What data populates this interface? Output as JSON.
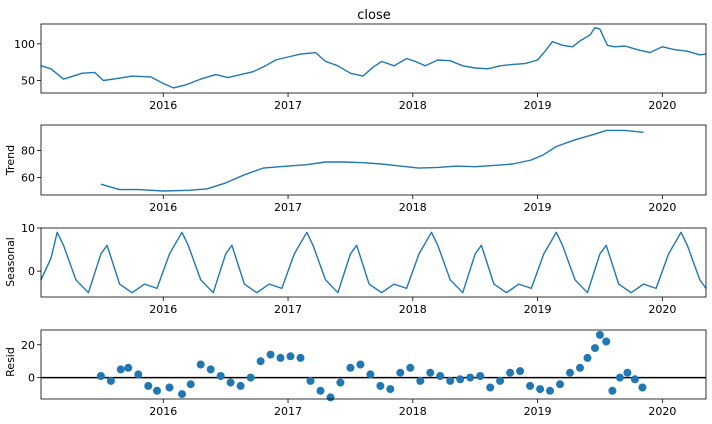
{
  "chart_data": [
    {
      "type": "line",
      "panel": "observed",
      "title": "close",
      "ylabel": "",
      "ylim": [
        33,
        127
      ],
      "yticks": [
        50,
        100
      ],
      "x_range": [
        2015.02,
        2020.35
      ],
      "xticks": [
        2016,
        2017,
        2018,
        2019,
        2020
      ],
      "series": [
        {
          "color": "#1f77b4",
          "x": [
            2015.02,
            2015.1,
            2015.2,
            2015.28,
            2015.35,
            2015.45,
            2015.52,
            2015.6,
            2015.75,
            2015.9,
            2016.0,
            2016.08,
            2016.18,
            2016.3,
            2016.42,
            2016.52,
            2016.62,
            2016.72,
            2016.82,
            2016.9,
            2017.0,
            2017.1,
            2017.22,
            2017.3,
            2017.4,
            2017.5,
            2017.6,
            2017.68,
            2017.75,
            2017.85,
            2017.95,
            2018.02,
            2018.1,
            2018.2,
            2018.3,
            2018.4,
            2018.5,
            2018.6,
            2018.7,
            2018.8,
            2018.9,
            2019.0,
            2019.06,
            2019.12,
            2019.2,
            2019.28,
            2019.35,
            2019.42,
            2019.46,
            2019.5,
            2019.56,
            2019.62,
            2019.7,
            2019.8,
            2019.9,
            2020.0,
            2020.1,
            2020.2,
            2020.3,
            2020.35
          ],
          "y": [
            70,
            66,
            52,
            56,
            60,
            61,
            50,
            52,
            56,
            55,
            46,
            40,
            44,
            52,
            58,
            54,
            58,
            62,
            70,
            78,
            82,
            86,
            88,
            76,
            70,
            60,
            56,
            68,
            76,
            70,
            80,
            76,
            70,
            78,
            77,
            70,
            67,
            66,
            70,
            72,
            73,
            78,
            90,
            103,
            98,
            96,
            105,
            112,
            122,
            120,
            98,
            96,
            97,
            92,
            88,
            96,
            92,
            90,
            85,
            86
          ]
        }
      ]
    },
    {
      "type": "line",
      "panel": "trend",
      "title": "",
      "ylabel": "Trend",
      "ylim": [
        47,
        99
      ],
      "yticks": [
        60,
        80
      ],
      "x_range": [
        2015.02,
        2020.35
      ],
      "xticks": [
        2016,
        2017,
        2018,
        2019,
        2020
      ],
      "series": [
        {
          "color": "#1f77b4",
          "x": [
            2015.5,
            2015.65,
            2015.8,
            2016.0,
            2016.2,
            2016.35,
            2016.5,
            2016.65,
            2016.8,
            2017.0,
            2017.15,
            2017.3,
            2017.45,
            2017.6,
            2017.75,
            2017.9,
            2018.05,
            2018.2,
            2018.35,
            2018.5,
            2018.65,
            2018.8,
            2018.95,
            2019.05,
            2019.15,
            2019.3,
            2019.45,
            2019.55,
            2019.7,
            2019.85
          ],
          "y": [
            55,
            51,
            51,
            50,
            50.5,
            51.5,
            56,
            62,
            67,
            68.5,
            69.5,
            71.5,
            71.5,
            71,
            70,
            68.5,
            67,
            67.5,
            68.5,
            68,
            69,
            70,
            73,
            77,
            83,
            88,
            92,
            95,
            95,
            93.5
          ]
        }
      ]
    },
    {
      "type": "line",
      "panel": "seasonal",
      "title": "",
      "ylabel": "Seasonal",
      "ylim": [
        -6,
        10
      ],
      "yticks": [
        0,
        10
      ],
      "x_range": [
        2015.02,
        2020.35
      ],
      "xticks": [
        2016,
        2017,
        2018,
        2019,
        2020
      ],
      "series": [
        {
          "color": "#1f77b4",
          "x": [
            2015.02,
            2015.1,
            2015.15,
            2015.2,
            2015.3,
            2015.4,
            2015.5,
            2015.55,
            2015.65,
            2015.75,
            2015.85,
            2015.95,
            2016.05,
            2016.15,
            2016.2,
            2016.3,
            2016.4,
            2016.5,
            2016.55,
            2016.65,
            2016.75,
            2016.85,
            2016.95,
            2017.05,
            2017.15,
            2017.2,
            2017.3,
            2017.4,
            2017.5,
            2017.55,
            2017.65,
            2017.75,
            2017.85,
            2017.95,
            2018.05,
            2018.15,
            2018.2,
            2018.3,
            2018.4,
            2018.5,
            2018.55,
            2018.65,
            2018.75,
            2018.85,
            2018.95,
            2019.05,
            2019.15,
            2019.2,
            2019.3,
            2019.4,
            2019.5,
            2019.55,
            2019.65,
            2019.75,
            2019.85,
            2019.95,
            2020.05,
            2020.15,
            2020.2,
            2020.3,
            2020.35
          ],
          "y": [
            -2,
            3,
            9,
            6,
            -2,
            -5,
            4,
            6,
            -3,
            -5,
            -3,
            -4,
            4,
            9,
            6,
            -2,
            -5,
            4,
            6,
            -3,
            -5,
            -3,
            -4,
            4,
            9,
            6,
            -2,
            -5,
            4,
            6,
            -3,
            -5,
            -3,
            -4,
            4,
            9,
            6,
            -2,
            -5,
            4,
            6,
            -3,
            -5,
            -3,
            -4,
            4,
            9,
            6,
            -2,
            -5,
            4,
            6,
            -3,
            -5,
            -3,
            -4,
            4,
            9,
            6,
            -2,
            -4
          ]
        }
      ]
    },
    {
      "type": "scatter",
      "panel": "resid",
      "title": "",
      "ylabel": "Resid",
      "ylim": [
        -13,
        29
      ],
      "yticks": [
        0,
        20
      ],
      "x_range": [
        2015.02,
        2020.35
      ],
      "xticks": [
        2016,
        2017,
        2018,
        2019,
        2020
      ],
      "zero_line": true,
      "series": [
        {
          "color": "#1f77b4",
          "x": [
            2015.5,
            2015.58,
            2015.66,
            2015.72,
            2015.8,
            2015.88,
            2015.95,
            2016.05,
            2016.15,
            2016.22,
            2016.3,
            2016.38,
            2016.46,
            2016.54,
            2016.62,
            2016.7,
            2016.78,
            2016.86,
            2016.94,
            2017.02,
            2017.1,
            2017.18,
            2017.26,
            2017.34,
            2017.42,
            2017.5,
            2017.58,
            2017.66,
            2017.74,
            2017.82,
            2017.9,
            2017.98,
            2018.06,
            2018.14,
            2018.22,
            2018.3,
            2018.38,
            2018.46,
            2018.54,
            2018.62,
            2018.7,
            2018.78,
            2018.86,
            2018.94,
            2019.02,
            2019.1,
            2019.18,
            2019.26,
            2019.34,
            2019.4,
            2019.46,
            2019.5,
            2019.55,
            2019.6,
            2019.66,
            2019.72,
            2019.78,
            2019.84
          ],
          "y": [
            1,
            -2,
            5,
            6,
            2,
            -5,
            -8,
            -6,
            -10,
            -4,
            8,
            5,
            1,
            -3,
            -5,
            0,
            10,
            14,
            12,
            13,
            12,
            -2,
            -8,
            -12,
            -3,
            6,
            8,
            2,
            -5,
            -7,
            3,
            6,
            -2,
            3,
            1,
            -2,
            -1,
            0,
            1,
            -6,
            -2,
            3,
            4,
            -5,
            -7,
            -8,
            -4,
            3,
            6,
            12,
            18,
            26,
            22,
            -8,
            0,
            3,
            -1,
            -6
          ]
        }
      ]
    }
  ]
}
